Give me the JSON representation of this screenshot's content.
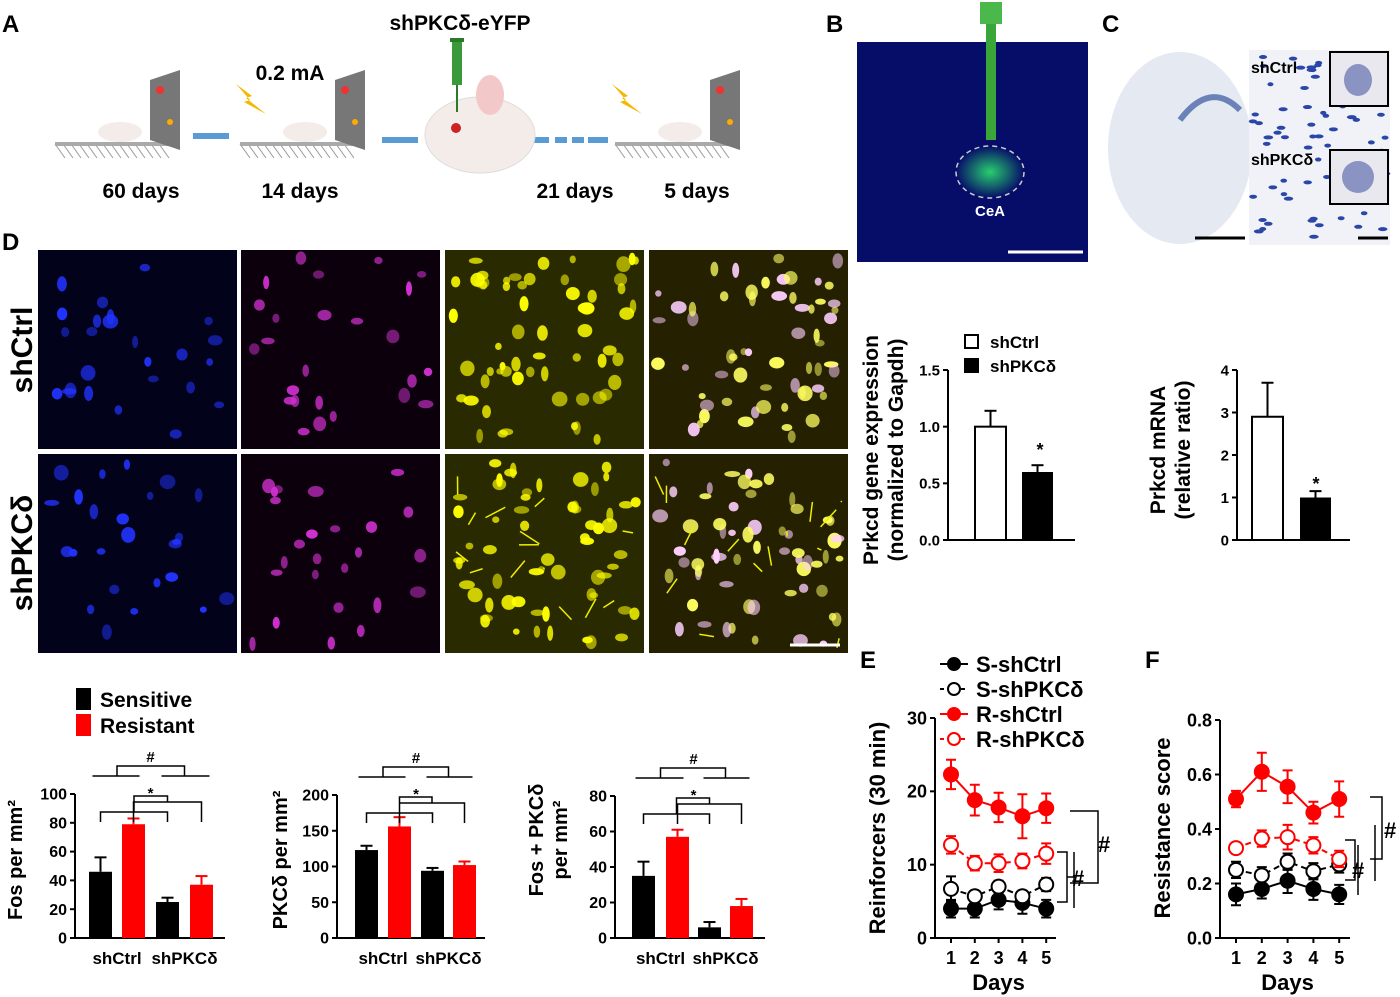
{
  "panels": {
    "A": "A",
    "B": "B",
    "C": "C",
    "D": "D",
    "E": "E",
    "F": "F"
  },
  "panelA": {
    "construct": "shPKCδ-eYFP",
    "shock": "0.2 mA",
    "durations": [
      "60 days",
      "14 days",
      "21 days",
      "5 days"
    ]
  },
  "panelB": {
    "region": "CeA"
  },
  "panelC": {
    "labels": [
      "shCtrl",
      "shPKCδ"
    ]
  },
  "panelD": {
    "rows": [
      "shCtrl",
      "shPKCδ"
    ]
  },
  "colors": {
    "sensitive": "#000000",
    "resistant": "#ff0000",
    "dapi": "#1a2cff",
    "pkcd": "#d020d0",
    "eyfp": "#ffff00"
  },
  "chart_data": [
    {
      "id": "prkcd-qpcr",
      "type": "bar",
      "ylabel_lines": [
        "Prkcd gene expression",
        "(normalized to Gapdh)"
      ],
      "ylim": [
        0,
        1.5
      ],
      "yticks": [
        "0.0",
        "0.5",
        "1.0",
        "1.5"
      ],
      "ytick_values": [
        0,
        0.5,
        1.0,
        1.5
      ],
      "legend": [
        "shCtrl",
        "shPKCδ"
      ],
      "bars": [
        {
          "group": "shCtrl",
          "value": 1.0,
          "err": 0.14,
          "fill": "#ffffff"
        },
        {
          "group": "shPKCδ",
          "value": 0.6,
          "err": 0.06,
          "fill": "#000000"
        }
      ],
      "annotations": [
        "*"
      ]
    },
    {
      "id": "prkcd-mrna",
      "type": "bar",
      "ylabel_lines": [
        "Prkcd mRNA",
        "(relative ratio)"
      ],
      "ylim": [
        0,
        4
      ],
      "yticks": [
        "0",
        "1",
        "2",
        "3",
        "4"
      ],
      "ytick_values": [
        0,
        1,
        2,
        3,
        4
      ],
      "bars": [
        {
          "group": "shCtrl",
          "value": 2.9,
          "err": 0.8,
          "fill": "#ffffff"
        },
        {
          "group": "shPKCδ",
          "value": 1.0,
          "err": 0.15,
          "fill": "#000000"
        }
      ],
      "annotations": [
        "*"
      ]
    },
    {
      "id": "fos",
      "type": "bar",
      "ylabel_lines": [
        "Fos per mm²"
      ],
      "ylim": [
        0,
        100
      ],
      "yticks": [
        "0",
        "20",
        "40",
        "60",
        "80",
        "100"
      ],
      "ytick_values": [
        0,
        20,
        40,
        60,
        80,
        100
      ],
      "categories": [
        "shCtrl",
        "shPKCδ"
      ],
      "legend": [
        "Sensitive",
        "Resistant"
      ],
      "bars": [
        {
          "value": 46,
          "err": 10,
          "series": "Sensitive"
        },
        {
          "value": 79,
          "err": 4,
          "series": "Resistant"
        },
        {
          "value": 25,
          "err": 3,
          "series": "Sensitive"
        },
        {
          "value": 37,
          "err": 6,
          "series": "Resistant"
        }
      ],
      "annotations": [
        "#",
        "*"
      ]
    },
    {
      "id": "pkcd",
      "type": "bar",
      "ylabel_lines": [
        "PKCδ per mm²"
      ],
      "ylim": [
        0,
        200
      ],
      "yticks": [
        "0",
        "50",
        "100",
        "150",
        "200"
      ],
      "ytick_values": [
        0,
        50,
        100,
        150,
        200
      ],
      "categories": [
        "shCtrl",
        "shPKCδ"
      ],
      "bars": [
        {
          "value": 123,
          "err": 6,
          "series": "Sensitive"
        },
        {
          "value": 156,
          "err": 13,
          "series": "Resistant"
        },
        {
          "value": 94,
          "err": 4,
          "series": "Sensitive"
        },
        {
          "value": 102,
          "err": 5,
          "series": "Resistant"
        }
      ],
      "annotations": [
        "#",
        "*"
      ]
    },
    {
      "id": "fos-pkcd",
      "type": "bar",
      "ylabel_lines": [
        "Fos + PKCδ",
        "per mm²"
      ],
      "ylim": [
        0,
        80
      ],
      "yticks": [
        "0",
        "20",
        "40",
        "60",
        "80"
      ],
      "ytick_values": [
        0,
        20,
        40,
        60,
        80
      ],
      "categories": [
        "shCtrl",
        "shPKCδ"
      ],
      "bars": [
        {
          "value": 35,
          "err": 8,
          "series": "Sensitive"
        },
        {
          "value": 57,
          "err": 4,
          "series": "Resistant"
        },
        {
          "value": 6,
          "err": 3,
          "series": "Sensitive"
        },
        {
          "value": 18,
          "err": 4,
          "series": "Resistant"
        }
      ],
      "annotations": [
        "#",
        "*"
      ]
    },
    {
      "id": "reinforcers",
      "type": "line",
      "xlabel": "Days",
      "ylabel": "Reinforcers (30 min)",
      "x": [
        1,
        2,
        3,
        4,
        5
      ],
      "xticks": [
        "1",
        "2",
        "3",
        "4",
        "5"
      ],
      "ylim": [
        0,
        30
      ],
      "yticks": [
        "0",
        "10",
        "20",
        "30"
      ],
      "ytick_values": [
        0,
        10,
        20,
        30
      ],
      "series": [
        {
          "name": "S-shCtrl",
          "color": "#000000",
          "filled": true,
          "values": [
            4,
            4,
            5.2,
            4.8,
            4
          ],
          "err": [
            1.2,
            1.2,
            1.3,
            1.5,
            1.2
          ]
        },
        {
          "name": "S-shPKCδ",
          "color": "#000000",
          "filled": false,
          "values": [
            6.7,
            5.7,
            7,
            5.7,
            7.3
          ],
          "err": [
            1.7,
            0.6,
            0.8,
            0.6,
            0.9
          ]
        },
        {
          "name": "R-shCtrl",
          "color": "#ff0000",
          "filled": true,
          "values": [
            22.3,
            18.8,
            17.8,
            16.6,
            17.7
          ],
          "err": [
            2,
            2.1,
            2,
            3,
            2
          ]
        },
        {
          "name": "R-shPKCδ",
          "color": "#ff0000",
          "filled": false,
          "values": [
            12.7,
            10.2,
            10.2,
            10.5,
            11.5
          ],
          "err": [
            1.2,
            1,
            1.2,
            1,
            1.4
          ]
        }
      ],
      "annotations": [
        "#",
        "#"
      ]
    },
    {
      "id": "resistance",
      "type": "line",
      "xlabel": "Days",
      "ylabel": "Resistance score",
      "x": [
        1,
        2,
        3,
        4,
        5
      ],
      "xticks": [
        "1",
        "2",
        "3",
        "4",
        "5"
      ],
      "ylim": [
        0,
        0.8
      ],
      "yticks": [
        "0.0",
        "0.2",
        "0.4",
        "0.6",
        "0.8"
      ],
      "ytick_values": [
        0,
        0.2,
        0.4,
        0.6,
        0.8
      ],
      "series": [
        {
          "name": "S-shCtrl",
          "color": "#000000",
          "filled": true,
          "values": [
            0.16,
            0.18,
            0.21,
            0.18,
            0.16
          ],
          "err": [
            0.04,
            0.035,
            0.045,
            0.04,
            0.035
          ]
        },
        {
          "name": "S-shPKCδ",
          "color": "#000000",
          "filled": false,
          "values": [
            0.25,
            0.23,
            0.28,
            0.245,
            0.27
          ],
          "err": [
            0.03,
            0.03,
            0.03,
            0.03,
            0.03
          ]
        },
        {
          "name": "R-shCtrl",
          "color": "#ff0000",
          "filled": true,
          "values": [
            0.51,
            0.61,
            0.555,
            0.46,
            0.51
          ],
          "err": [
            0.03,
            0.07,
            0.06,
            0.04,
            0.065
          ]
        },
        {
          "name": "R-shPKCδ",
          "color": "#ff0000",
          "filled": false,
          "values": [
            0.33,
            0.365,
            0.37,
            0.34,
            0.29
          ],
          "err": [
            0.02,
            0.03,
            0.045,
            0.03,
            0.03
          ]
        }
      ],
      "annotations": [
        "#",
        "#"
      ]
    }
  ]
}
